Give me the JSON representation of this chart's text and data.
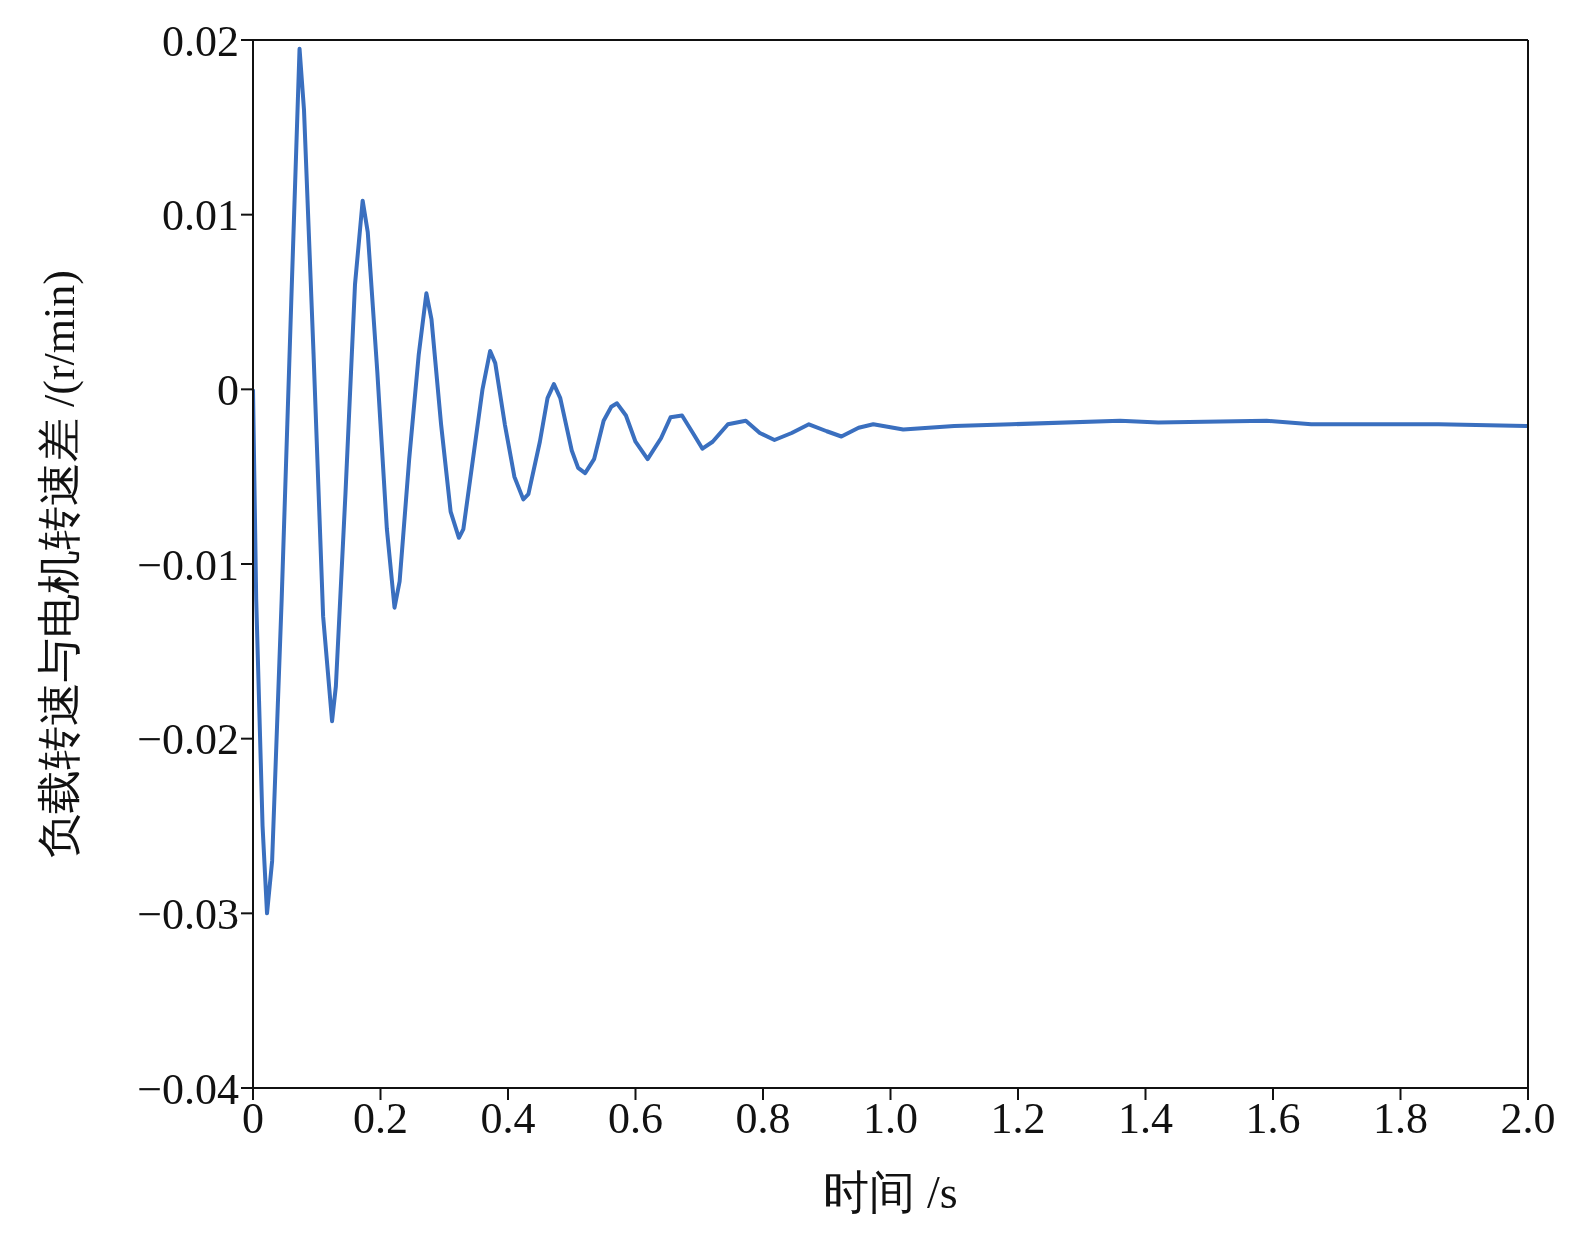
{
  "chart_data": {
    "type": "line",
    "xlabel": "时间 /s",
    "ylabel": "负载转速与电机转速差 /(r/min)",
    "x": [
      0,
      0.005,
      0.015,
      0.022,
      0.03,
      0.045,
      0.06,
      0.073,
      0.08,
      0.095,
      0.11,
      0.124,
      0.13,
      0.145,
      0.16,
      0.172,
      0.18,
      0.195,
      0.21,
      0.222,
      0.23,
      0.245,
      0.26,
      0.272,
      0.28,
      0.295,
      0.31,
      0.323,
      0.33,
      0.345,
      0.36,
      0.372,
      0.38,
      0.395,
      0.41,
      0.424,
      0.432,
      0.45,
      0.462,
      0.472,
      0.482,
      0.5,
      0.51,
      0.521,
      0.535,
      0.55,
      0.562,
      0.571,
      0.585,
      0.6,
      0.619,
      0.64,
      0.655,
      0.673,
      0.69,
      0.705,
      0.721,
      0.745,
      0.773,
      0.795,
      0.818,
      0.845,
      0.872,
      0.9,
      0.923,
      0.95,
      0.973,
      1.02,
      1.1,
      1.19,
      1.36,
      1.42,
      1.59,
      1.66,
      1.86,
      2.0
    ],
    "series": [
      {
        "color": "#3a6fbf",
        "values": [
          0,
          -0.012,
          -0.025,
          -0.03,
          -0.027,
          -0.012,
          0.005,
          0.0195,
          0.016,
          0.002,
          -0.013,
          -0.019,
          -0.017,
          -0.006,
          0.006,
          0.0108,
          0.009,
          0.001,
          -0.008,
          -0.0125,
          -0.011,
          -0.004,
          0.002,
          0.0055,
          0.004,
          -0.002,
          -0.007,
          -0.0085,
          -0.008,
          -0.004,
          0,
          0.0022,
          0.0015,
          -0.002,
          -0.005,
          -0.0063,
          -0.006,
          -0.003,
          -0.0005,
          0.0003,
          -0.0005,
          -0.0035,
          -0.0045,
          -0.0048,
          -0.004,
          -0.0018,
          -0.001,
          -0.0008,
          -0.0015,
          -0.003,
          -0.004,
          -0.0028,
          -0.0016,
          -0.0015,
          -0.0025,
          -0.0034,
          -0.003,
          -0.002,
          -0.0018,
          -0.0025,
          -0.0029,
          -0.0025,
          -0.002,
          -0.0024,
          -0.0027,
          -0.0022,
          -0.002,
          -0.0023,
          -0.0021,
          -0.002,
          -0.0018,
          -0.0019,
          -0.0018,
          -0.002,
          -0.002,
          -0.0021
        ]
      }
    ],
    "xlim": [
      0,
      2
    ],
    "ylim": [
      -0.04,
      0.02
    ],
    "xticks": [
      0,
      0.2,
      0.4,
      0.6,
      0.8,
      {
        "value": 1,
        "label": "1.0"
      },
      1.2,
      1.4,
      1.6,
      1.8,
      {
        "value": 2,
        "label": "2.0"
      }
    ],
    "yticks": [
      {
        "value": -0.04,
        "label": "−0.04"
      },
      {
        "value": -0.03,
        "label": "−0.03"
      },
      {
        "value": -0.02,
        "label": "−0.02"
      },
      {
        "value": -0.01,
        "label": "−0.01"
      },
      0,
      0.01,
      0.02
    ],
    "grid": false,
    "legend": false,
    "marker": "none",
    "line_style": "solid"
  }
}
